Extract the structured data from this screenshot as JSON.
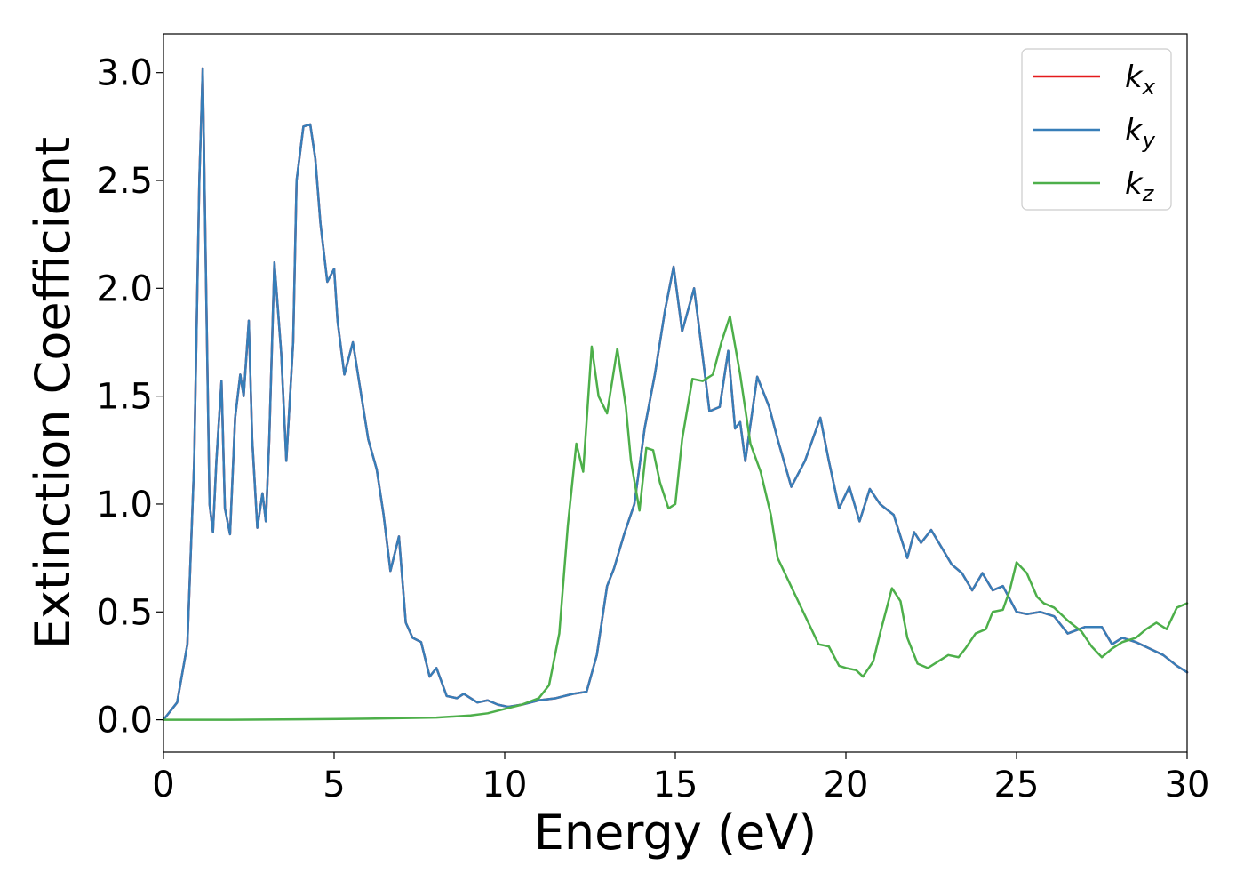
{
  "chart_data": {
    "type": "line",
    "title": "",
    "xlabel": "Energy (eV)",
    "ylabel": "Extinction Coefficient",
    "xlim": [
      0,
      30
    ],
    "ylim": [
      -0.15,
      3.18
    ],
    "xticks": [
      0,
      5,
      10,
      15,
      20,
      25,
      30
    ],
    "yticks": [
      0.0,
      0.5,
      1.0,
      1.5,
      2.0,
      2.5,
      3.0
    ],
    "xtick_labels": [
      "0",
      "5",
      "10",
      "15",
      "20",
      "25",
      "30"
    ],
    "ytick_labels": [
      "0.0",
      "0.5",
      "1.0",
      "1.5",
      "2.0",
      "2.5",
      "3.0"
    ],
    "grid": false,
    "legend": {
      "placement": "top-right",
      "entries": [
        {
          "base": "k",
          "sub": "x",
          "color": "#e41a1c"
        },
        {
          "base": "k",
          "sub": "y",
          "color": "#377eb8"
        },
        {
          "base": "k",
          "sub": "z",
          "color": "#4daf4a"
        }
      ]
    },
    "series": [
      {
        "name": "kx",
        "color": "#e41a1c",
        "x": [
          0,
          0.4,
          0.7,
          0.9,
          1.05,
          1.15,
          1.25,
          1.35,
          1.45,
          1.55,
          1.7,
          1.8,
          1.95,
          2.1,
          2.25,
          2.35,
          2.5,
          2.6,
          2.75,
          2.9,
          3.0,
          3.1,
          3.25,
          3.45,
          3.6,
          3.8,
          3.9,
          4.1,
          4.3,
          4.45,
          4.6,
          4.8,
          5.0,
          5.1,
          5.3,
          5.55,
          5.8,
          6.0,
          6.25,
          6.45,
          6.65,
          6.9,
          7.1,
          7.3,
          7.55,
          7.8,
          8.0,
          8.3,
          8.6,
          8.8,
          9.2,
          9.5,
          9.8,
          10.1,
          10.5,
          11.0,
          11.5,
          12.0,
          12.4,
          12.7,
          13.0,
          13.2,
          13.5,
          13.8,
          14.1,
          14.4,
          14.7,
          14.95,
          15.2,
          15.55,
          15.75,
          16.0,
          16.3,
          16.55,
          16.75,
          16.9,
          17.05,
          17.4,
          17.75,
          18.0,
          18.4,
          18.8,
          19.25,
          19.5,
          19.8,
          20.1,
          20.4,
          20.7,
          21.0,
          21.4,
          21.8,
          22.0,
          22.2,
          22.5,
          22.8,
          23.1,
          23.4,
          23.7,
          24.0,
          24.3,
          24.6,
          25.0,
          25.3,
          25.7,
          26.1,
          26.5,
          27.0,
          27.5,
          27.8,
          28.1,
          28.5,
          28.9,
          29.3,
          29.7,
          30.0
        ],
        "y": [
          0.0,
          0.08,
          0.35,
          1.2,
          2.5,
          3.02,
          2.0,
          1.0,
          0.87,
          1.2,
          1.57,
          0.98,
          0.86,
          1.4,
          1.6,
          1.5,
          1.85,
          1.3,
          0.89,
          1.05,
          0.92,
          1.3,
          2.12,
          1.7,
          1.2,
          1.75,
          2.5,
          2.75,
          2.76,
          2.6,
          2.3,
          2.03,
          2.09,
          1.85,
          1.6,
          1.75,
          1.5,
          1.3,
          1.16,
          0.95,
          0.69,
          0.85,
          0.45,
          0.38,
          0.36,
          0.2,
          0.24,
          0.11,
          0.1,
          0.12,
          0.08,
          0.09,
          0.07,
          0.06,
          0.07,
          0.09,
          0.1,
          0.12,
          0.13,
          0.3,
          0.62,
          0.7,
          0.86,
          1.0,
          1.35,
          1.6,
          1.9,
          2.1,
          1.8,
          2.0,
          1.75,
          1.43,
          1.45,
          1.71,
          1.35,
          1.38,
          1.2,
          1.59,
          1.45,
          1.3,
          1.08,
          1.2,
          1.4,
          1.2,
          0.98,
          1.08,
          0.92,
          1.07,
          1.0,
          0.95,
          0.75,
          0.87,
          0.82,
          0.88,
          0.8,
          0.72,
          0.68,
          0.6,
          0.68,
          0.6,
          0.62,
          0.5,
          0.49,
          0.5,
          0.48,
          0.4,
          0.43,
          0.43,
          0.35,
          0.38,
          0.36,
          0.33,
          0.3,
          0.25,
          0.22
        ]
      },
      {
        "name": "ky",
        "color": "#377eb8",
        "x": [
          0,
          0.4,
          0.7,
          0.9,
          1.05,
          1.15,
          1.25,
          1.35,
          1.45,
          1.55,
          1.7,
          1.8,
          1.95,
          2.1,
          2.25,
          2.35,
          2.5,
          2.6,
          2.75,
          2.9,
          3.0,
          3.1,
          3.25,
          3.45,
          3.6,
          3.8,
          3.9,
          4.1,
          4.3,
          4.45,
          4.6,
          4.8,
          5.0,
          5.1,
          5.3,
          5.55,
          5.8,
          6.0,
          6.25,
          6.45,
          6.65,
          6.9,
          7.1,
          7.3,
          7.55,
          7.8,
          8.0,
          8.3,
          8.6,
          8.8,
          9.2,
          9.5,
          9.8,
          10.1,
          10.5,
          11.0,
          11.5,
          12.0,
          12.4,
          12.7,
          13.0,
          13.2,
          13.5,
          13.8,
          14.1,
          14.4,
          14.7,
          14.95,
          15.2,
          15.55,
          15.75,
          16.0,
          16.3,
          16.55,
          16.75,
          16.9,
          17.05,
          17.4,
          17.75,
          18.0,
          18.4,
          18.8,
          19.25,
          19.5,
          19.8,
          20.1,
          20.4,
          20.7,
          21.0,
          21.4,
          21.8,
          22.0,
          22.2,
          22.5,
          22.8,
          23.1,
          23.4,
          23.7,
          24.0,
          24.3,
          24.6,
          25.0,
          25.3,
          25.7,
          26.1,
          26.5,
          27.0,
          27.5,
          27.8,
          28.1,
          28.5,
          28.9,
          29.3,
          29.7,
          30.0
        ],
        "y": [
          0.0,
          0.08,
          0.35,
          1.2,
          2.5,
          3.02,
          2.0,
          1.0,
          0.87,
          1.2,
          1.57,
          0.98,
          0.86,
          1.4,
          1.6,
          1.5,
          1.85,
          1.3,
          0.89,
          1.05,
          0.92,
          1.3,
          2.12,
          1.7,
          1.2,
          1.75,
          2.5,
          2.75,
          2.76,
          2.6,
          2.3,
          2.03,
          2.09,
          1.85,
          1.6,
          1.75,
          1.5,
          1.3,
          1.16,
          0.95,
          0.69,
          0.85,
          0.45,
          0.38,
          0.36,
          0.2,
          0.24,
          0.11,
          0.1,
          0.12,
          0.08,
          0.09,
          0.07,
          0.06,
          0.07,
          0.09,
          0.1,
          0.12,
          0.13,
          0.3,
          0.62,
          0.7,
          0.86,
          1.0,
          1.35,
          1.6,
          1.9,
          2.1,
          1.8,
          2.0,
          1.75,
          1.43,
          1.45,
          1.71,
          1.35,
          1.38,
          1.2,
          1.59,
          1.45,
          1.3,
          1.08,
          1.2,
          1.4,
          1.2,
          0.98,
          1.08,
          0.92,
          1.07,
          1.0,
          0.95,
          0.75,
          0.87,
          0.82,
          0.88,
          0.8,
          0.72,
          0.68,
          0.6,
          0.68,
          0.6,
          0.62,
          0.5,
          0.49,
          0.5,
          0.48,
          0.4,
          0.43,
          0.43,
          0.35,
          0.38,
          0.36,
          0.33,
          0.3,
          0.25,
          0.22
        ]
      },
      {
        "name": "kz",
        "color": "#4daf4a",
        "x": [
          0,
          2,
          4,
          6,
          8,
          9,
          9.5,
          10,
          10.5,
          11,
          11.3,
          11.6,
          11.85,
          12.1,
          12.3,
          12.55,
          12.75,
          13.0,
          13.3,
          13.55,
          13.7,
          13.95,
          14.15,
          14.35,
          14.55,
          14.8,
          15.0,
          15.2,
          15.5,
          15.8,
          16.1,
          16.35,
          16.6,
          16.9,
          17.2,
          17.5,
          17.8,
          18.0,
          18.3,
          18.6,
          18.9,
          19.2,
          19.5,
          19.8,
          20.0,
          20.3,
          20.5,
          20.8,
          21.0,
          21.35,
          21.6,
          21.8,
          22.1,
          22.4,
          22.7,
          23.0,
          23.3,
          23.5,
          23.8,
          24.1,
          24.3,
          24.6,
          24.8,
          25.0,
          25.3,
          25.6,
          25.8,
          26.1,
          26.5,
          26.9,
          27.2,
          27.5,
          27.8,
          28.1,
          28.5,
          28.8,
          29.1,
          29.4,
          29.7,
          30.0
        ],
        "y": [
          0.0,
          0.0,
          0.002,
          0.005,
          0.01,
          0.02,
          0.03,
          0.05,
          0.07,
          0.1,
          0.16,
          0.4,
          0.9,
          1.28,
          1.15,
          1.73,
          1.5,
          1.42,
          1.72,
          1.45,
          1.2,
          0.97,
          1.26,
          1.25,
          1.1,
          0.98,
          1.0,
          1.3,
          1.58,
          1.57,
          1.6,
          1.75,
          1.87,
          1.6,
          1.28,
          1.15,
          0.95,
          0.75,
          0.65,
          0.55,
          0.45,
          0.35,
          0.34,
          0.25,
          0.24,
          0.23,
          0.2,
          0.27,
          0.4,
          0.61,
          0.55,
          0.38,
          0.26,
          0.24,
          0.27,
          0.3,
          0.29,
          0.33,
          0.4,
          0.42,
          0.5,
          0.51,
          0.6,
          0.73,
          0.68,
          0.57,
          0.54,
          0.52,
          0.46,
          0.41,
          0.34,
          0.29,
          0.33,
          0.36,
          0.38,
          0.42,
          0.45,
          0.42,
          0.52,
          0.54
        ]
      }
    ]
  }
}
